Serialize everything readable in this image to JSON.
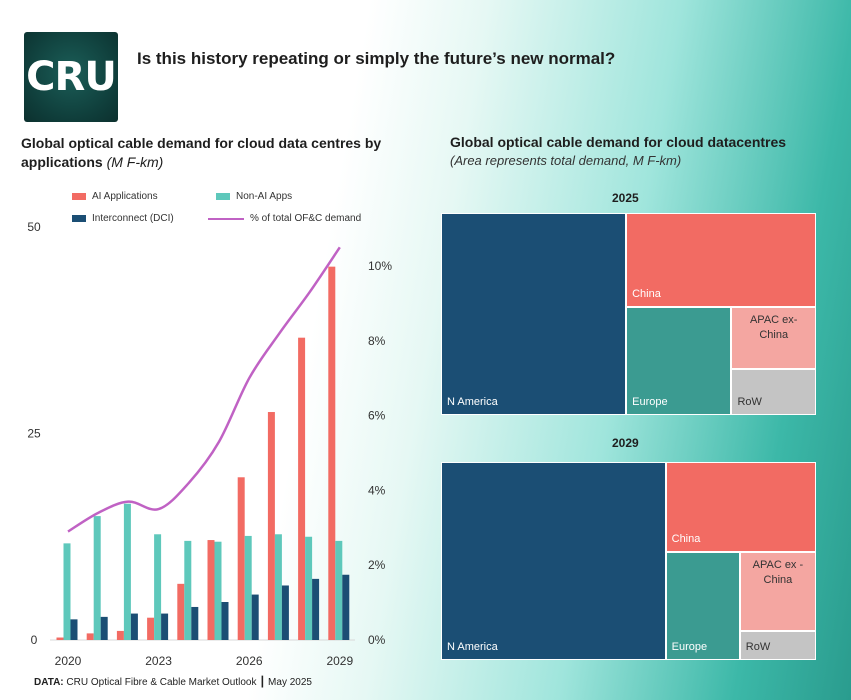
{
  "logo": {
    "text": "CRU"
  },
  "headline": "Is this history repeating or simply the future’s new normal?",
  "left_chart": {
    "title": "Global optical cable demand for cloud data centres by applications",
    "unit": "(M F-km)"
  },
  "right_chart": {
    "title": "Global optical cable demand for cloud datacentres",
    "subtitle": "(Area represents total demand, M F-km)"
  },
  "source": {
    "label": "DATA:",
    "text": "CRU Optical Fibre & Cable Market Outlook ┃ May 2025"
  },
  "colors": {
    "ai": "#f26b63",
    "non_ai": "#5ec8bb",
    "dci": "#1b4e74",
    "pct_line": "#c062c4",
    "n_america": "#1b4e74",
    "china": "#f26b63",
    "europe": "#3b9b91",
    "apac": "#f4a6a1",
    "row": "#c4c4c4"
  },
  "chart_data": [
    {
      "type": "bar",
      "title": "Global optical cable demand for cloud data centres by applications",
      "ylabel": "(M F-km)",
      "years": [
        2020,
        2021,
        2022,
        2023,
        2024,
        2025,
        2026,
        2027,
        2028,
        2029
      ],
      "x_tick_labels": [
        "2020",
        "2023",
        "2026",
        "2029"
      ],
      "y_left_ticks": [
        "0",
        "25",
        "50"
      ],
      "y_left_lim": [
        0,
        50
      ],
      "y_right_ticks": [
        "0%",
        "2%",
        "4%",
        "6%",
        "8%",
        "10%"
      ],
      "y_right_lim": [
        0,
        10
      ],
      "legend": [
        "AI Applications",
        "Non-AI Apps",
        "Interconnect (DCI)",
        "% of total OF&C demand"
      ],
      "series": [
        {
          "name": "AI Applications",
          "type": "bar",
          "values": [
            0.3,
            0.8,
            1.1,
            2.7,
            6.8,
            12.1,
            19.7,
            27.6,
            36.6,
            45.2
          ]
        },
        {
          "name": "Non-AI Apps",
          "type": "bar",
          "values": [
            11.7,
            15.0,
            16.5,
            12.8,
            12.0,
            11.9,
            12.6,
            12.8,
            12.5,
            12.0
          ]
        },
        {
          "name": "Interconnect (DCI)",
          "type": "bar",
          "values": [
            2.5,
            2.8,
            3.2,
            3.2,
            4.0,
            4.6,
            5.5,
            6.6,
            7.4,
            7.9
          ]
        },
        {
          "name": "% of total OF&C demand",
          "type": "line",
          "axis": "right",
          "values": [
            2.9,
            3.4,
            3.7,
            3.5,
            4.2,
            5.3,
            7.0,
            8.2,
            9.3,
            10.5
          ]
        }
      ]
    },
    {
      "type": "treemap",
      "title": "2025",
      "segments": [
        {
          "label": "N America",
          "value": 46.7
        },
        {
          "label": "China",
          "value": 22.3
        },
        {
          "label": "Europe",
          "value": 14.2
        },
        {
          "label": "APAC ex-China",
          "value": 6.5
        },
        {
          "label": "RoW",
          "value": 4.9
        }
      ]
    },
    {
      "type": "treemap",
      "title": "2029",
      "segments": [
        {
          "label": "N America",
          "value": 61.1
        },
        {
          "label": "China",
          "value": 18.6
        },
        {
          "label": "Europe",
          "value": 11.0
        },
        {
          "label": "APAC ex - China",
          "value": 8.3
        },
        {
          "label": "RoW",
          "value": 3.0
        }
      ]
    }
  ]
}
